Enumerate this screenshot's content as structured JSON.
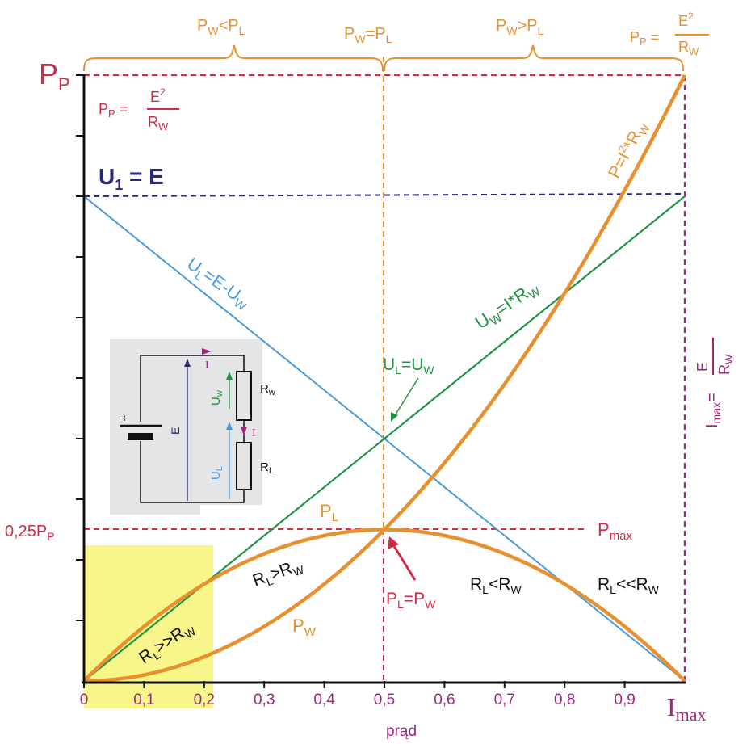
{
  "colors": {
    "orange": "#E8902E",
    "red": "#D42A45",
    "purple": "#A0267D",
    "navy": "#2A2878",
    "blue": "#4A9BDE",
    "green": "#1F9444",
    "highlight": "#F8F58A",
    "inset_bg": "#E4E5E6",
    "black": "#111111"
  },
  "regions": {
    "left": {
      "main": "P",
      "sub1": "W",
      "rel": "<",
      "p2": "P",
      "sub2": "L"
    },
    "middle": {
      "main": "P",
      "sub1": "W",
      "rel": "=",
      "p2": "P",
      "sub2": "L"
    },
    "right": {
      "main": "P",
      "sub1": "W",
      "rel": ">",
      "p2": "P",
      "sub2": "L"
    }
  },
  "labels": {
    "pp_axis": {
      "main": "P",
      "sub": "P"
    },
    "pp_formula": {
      "lhs": "P",
      "lhs_sub": "P",
      "eq": " =",
      "num": "E",
      "num_sup": "2",
      "den": "R",
      "den_sub": "W"
    },
    "u1": {
      "main": "U",
      "sub": "1",
      "rest": " = E"
    },
    "quarter": {
      "main": "0,25P",
      "sub": "P"
    },
    "pmax": {
      "main": "P",
      "sub": "max"
    },
    "imax_axis": {
      "main": "I",
      "sub": "max"
    },
    "imax_formula": {
      "lhs": "I",
      "lhs_sub": "max",
      "eq": "=",
      "num": "E",
      "den": "R",
      "den_sub": "W"
    },
    "ul_line": "U_L=E-U_W",
    "uw_line": "U_W=I*R_W",
    "ul_eq_uw": "U_L=U_W",
    "pw_formula": "P=I²*R_W",
    "pl": "P_L",
    "pw": "P_W",
    "pl_eq_pw": "P_L=P_W",
    "rl_gg_rw": "R_L>>R_W",
    "rl_gt_rw": "R_L>R_W",
    "rl_lt_rw": "R_L<R_W",
    "rl_ll_rw": "R_L<<R_W",
    "xaxis_title": "prąd"
  },
  "inset": {
    "i_label": "I",
    "i_label2": "I",
    "uw": "U",
    "uw_sub": "w",
    "rw": "R",
    "rw_sub": "w",
    "ul": "U",
    "ul_sub": "L",
    "rl": "R",
    "rl_sub": "L",
    "e": "E",
    "plus": "+"
  },
  "chart_data": {
    "type": "line",
    "title": "",
    "xlabel": "prąd",
    "ylabel": "",
    "x_ticks": [
      "0",
      "0,1",
      "0,2",
      "0,3",
      "0,4",
      "0,5",
      "0,6",
      "0,7",
      "0,8",
      "0,9"
    ],
    "xlim": [
      0,
      1
    ],
    "ylim": [
      0,
      1
    ],
    "y_ticks_labeled": [
      {
        "value": 0.25,
        "label": "0,25P_P"
      }
    ],
    "u1_level": 0.8,
    "series": [
      {
        "name": "U_L=E-U_W",
        "formula": "0.8*(1-x)"
      },
      {
        "name": "U_W=I*R_W",
        "formula": "0.8*x"
      },
      {
        "name": "P=I²*R_W",
        "formula": "x^2"
      },
      {
        "name": "P_L",
        "formula": "x*(1-x)"
      }
    ],
    "highlight_x_range": [
      0,
      0.217
    ],
    "marked_points": [
      {
        "x": 0.5,
        "y": 0.25,
        "label": "P_L=P_W"
      },
      {
        "x": 0.5,
        "y": 0.4,
        "label": "U_L=U_W"
      }
    ]
  }
}
